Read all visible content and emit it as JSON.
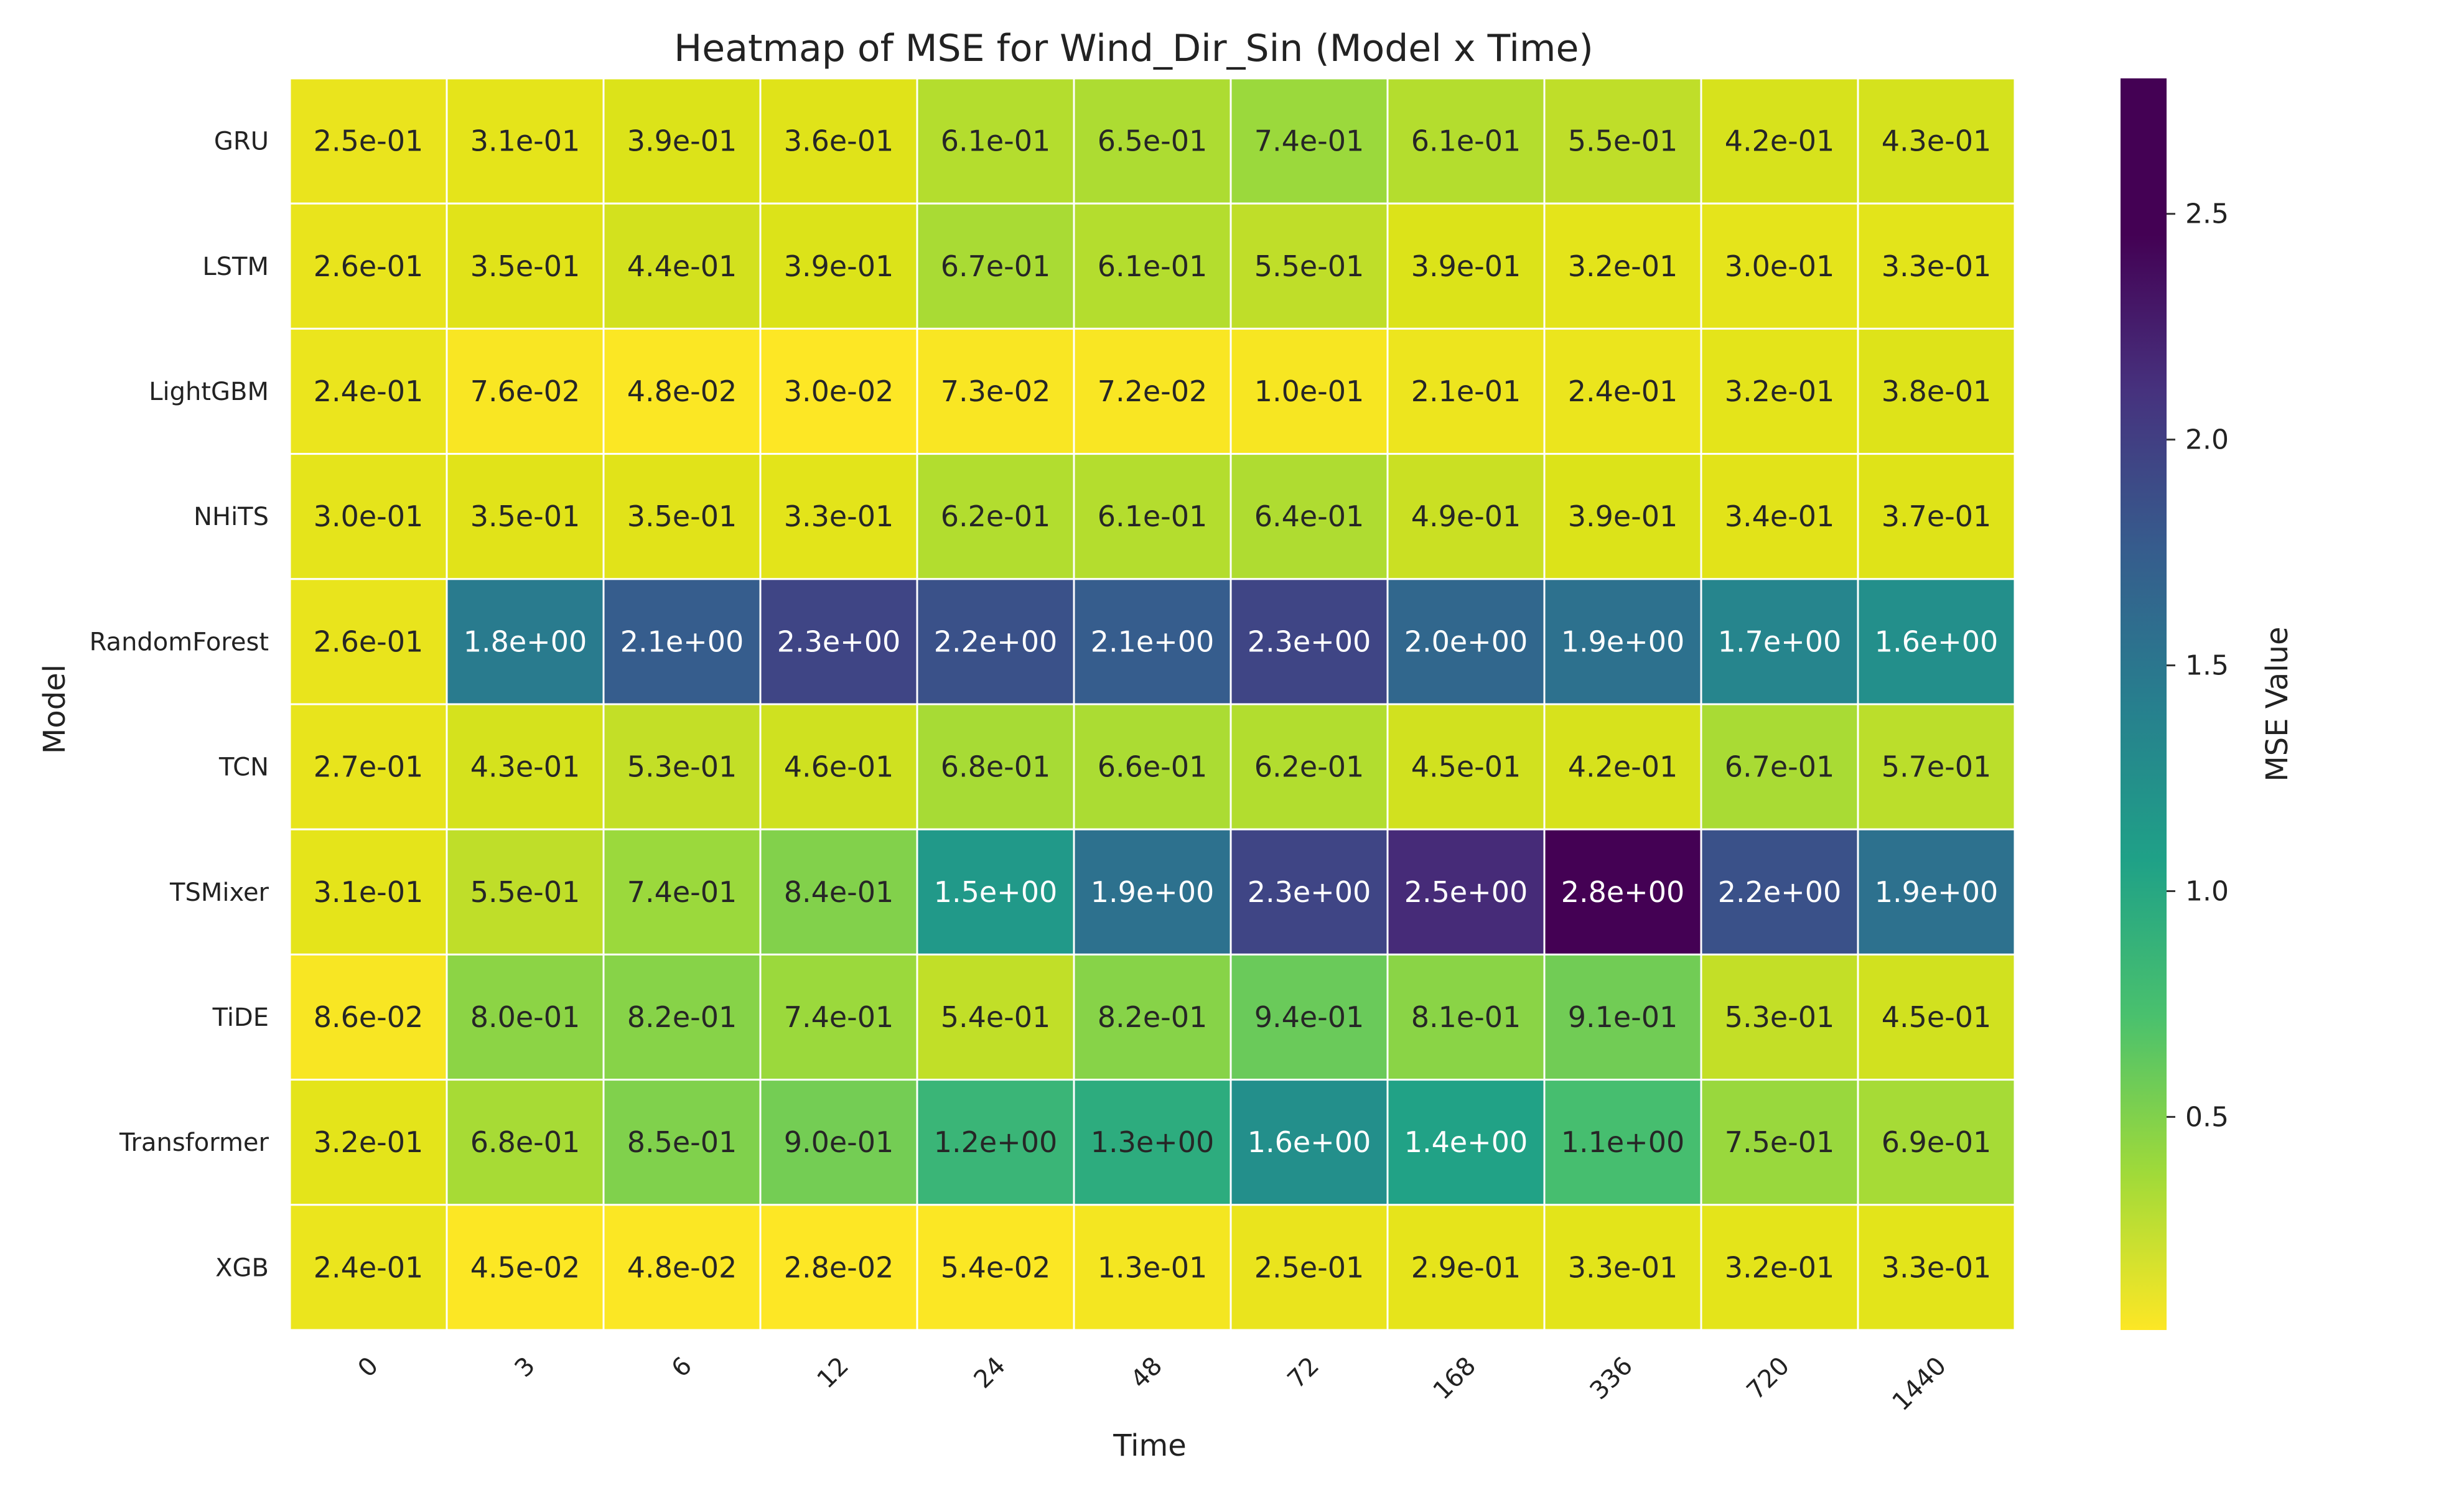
{
  "chart_data": {
    "type": "heatmap",
    "title": "Heatmap of MSE for Wind_Dir_Sin (Model x Time)",
    "xlabel": "Time",
    "ylabel": "Model",
    "colorbar_label": "MSE Value",
    "colormap": "viridis_r",
    "vmin": 0.028,
    "vmax": 2.8,
    "colorbar_ticks": [
      0.5,
      1.0,
      1.5,
      2.0,
      2.5
    ],
    "x_categories": [
      "0",
      "3",
      "6",
      "12",
      "24",
      "48",
      "72",
      "168",
      "336",
      "720",
      "1440"
    ],
    "y_categories": [
      "GRU",
      "LSTM",
      "LightGBM",
      "NHiTS",
      "RandomForest",
      "TCN",
      "TSMixer",
      "TiDE",
      "Transformer",
      "XGB"
    ],
    "values": [
      [
        0.25,
        0.31,
        0.39,
        0.36,
        0.61,
        0.65,
        0.74,
        0.61,
        0.55,
        0.42,
        0.43
      ],
      [
        0.26,
        0.35,
        0.44,
        0.39,
        0.67,
        0.61,
        0.55,
        0.39,
        0.32,
        0.3,
        0.33
      ],
      [
        0.24,
        0.076,
        0.048,
        0.03,
        0.073,
        0.072,
        0.1,
        0.21,
        0.24,
        0.32,
        0.38
      ],
      [
        0.3,
        0.35,
        0.35,
        0.33,
        0.62,
        0.61,
        0.64,
        0.49,
        0.39,
        0.34,
        0.37
      ],
      [
        0.26,
        1.8,
        2.1,
        2.3,
        2.2,
        2.1,
        2.3,
        2.0,
        1.9,
        1.7,
        1.6
      ],
      [
        0.27,
        0.43,
        0.53,
        0.46,
        0.68,
        0.66,
        0.62,
        0.45,
        0.42,
        0.67,
        0.57
      ],
      [
        0.31,
        0.55,
        0.74,
        0.84,
        1.5,
        1.9,
        2.3,
        2.5,
        2.8,
        2.2,
        1.9
      ],
      [
        0.086,
        0.8,
        0.82,
        0.74,
        0.54,
        0.82,
        0.94,
        0.81,
        0.91,
        0.53,
        0.45
      ],
      [
        0.32,
        0.68,
        0.85,
        0.9,
        1.2,
        1.3,
        1.6,
        1.4,
        1.1,
        0.75,
        0.69
      ],
      [
        0.24,
        0.045,
        0.048,
        0.028,
        0.054,
        0.13,
        0.25,
        0.29,
        0.33,
        0.32,
        0.33
      ]
    ],
    "labels": [
      [
        "2.5e-01",
        "3.1e-01",
        "3.9e-01",
        "3.6e-01",
        "6.1e-01",
        "6.5e-01",
        "7.4e-01",
        "6.1e-01",
        "5.5e-01",
        "4.2e-01",
        "4.3e-01"
      ],
      [
        "2.6e-01",
        "3.5e-01",
        "4.4e-01",
        "3.9e-01",
        "6.7e-01",
        "6.1e-01",
        "5.5e-01",
        "3.9e-01",
        "3.2e-01",
        "3.0e-01",
        "3.3e-01"
      ],
      [
        "2.4e-01",
        "7.6e-02",
        "4.8e-02",
        "3.0e-02",
        "7.3e-02",
        "7.2e-02",
        "1.0e-01",
        "2.1e-01",
        "2.4e-01",
        "3.2e-01",
        "3.8e-01"
      ],
      [
        "3.0e-01",
        "3.5e-01",
        "3.5e-01",
        "3.3e-01",
        "6.2e-01",
        "6.1e-01",
        "6.4e-01",
        "4.9e-01",
        "3.9e-01",
        "3.4e-01",
        "3.7e-01"
      ],
      [
        "2.6e-01",
        "1.8e+00",
        "2.1e+00",
        "2.3e+00",
        "2.2e+00",
        "2.1e+00",
        "2.3e+00",
        "2.0e+00",
        "1.9e+00",
        "1.7e+00",
        "1.6e+00"
      ],
      [
        "2.7e-01",
        "4.3e-01",
        "5.3e-01",
        "4.6e-01",
        "6.8e-01",
        "6.6e-01",
        "6.2e-01",
        "4.5e-01",
        "4.2e-01",
        "6.7e-01",
        "5.7e-01"
      ],
      [
        "3.1e-01",
        "5.5e-01",
        "7.4e-01",
        "8.4e-01",
        "1.5e+00",
        "1.9e+00",
        "2.3e+00",
        "2.5e+00",
        "2.8e+00",
        "2.2e+00",
        "1.9e+00"
      ],
      [
        "8.6e-02",
        "8.0e-01",
        "8.2e-01",
        "7.4e-01",
        "5.4e-01",
        "8.2e-01",
        "9.4e-01",
        "8.1e-01",
        "9.1e-01",
        "5.3e-01",
        "4.5e-01"
      ],
      [
        "3.2e-01",
        "6.8e-01",
        "8.5e-01",
        "9.0e-01",
        "1.2e+00",
        "1.3e+00",
        "1.6e+00",
        "1.4e+00",
        "1.1e+00",
        "7.5e-01",
        "6.9e-01"
      ],
      [
        "2.4e-01",
        "4.5e-02",
        "4.8e-02",
        "2.8e-02",
        "5.4e-02",
        "1.3e-01",
        "2.5e-01",
        "2.9e-01",
        "3.3e-01",
        "3.2e-01",
        "3.3e-01"
      ]
    ],
    "colorbar_tick_labels": [
      "0.5",
      "1.0",
      "1.5",
      "2.0",
      "2.5"
    ],
    "grid": false,
    "legend": "colorbar-right"
  }
}
